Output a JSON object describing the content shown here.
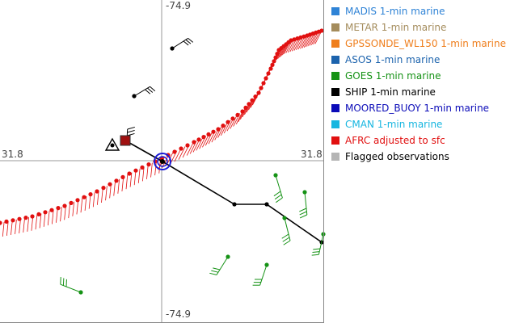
{
  "plot": {
    "labels": {
      "top_lon": "-74.9",
      "bottom_lon": "-74.9",
      "left_lat": "31.8",
      "right_lat": "31.8"
    }
  },
  "legend": {
    "items": [
      {
        "label": "MADIS 1-min marine",
        "color": "#2f83d6"
      },
      {
        "label": "METAR 1-min marine",
        "color": "#a48c5c"
      },
      {
        "label": "GPSSONDE_WL150 1-min marine",
        "color": "#ef7e1c"
      },
      {
        "label": "ASOS 1-min marine",
        "color": "#1c63ad"
      },
      {
        "label": "GOES 1-min marine",
        "color": "#159215"
      },
      {
        "label": "SHIP 1-min marine",
        "color": "#000000"
      },
      {
        "label": "MOORED_BUOY 1-min marine",
        "color": "#0b0bb8"
      },
      {
        "label": "CMAN 1-min marine",
        "color": "#17b6e0"
      },
      {
        "label": "AFRC adjusted to sfc",
        "color": "#e11010"
      },
      {
        "label": "Flagged observations",
        "color": "#b5b5b5"
      }
    ]
  }
}
